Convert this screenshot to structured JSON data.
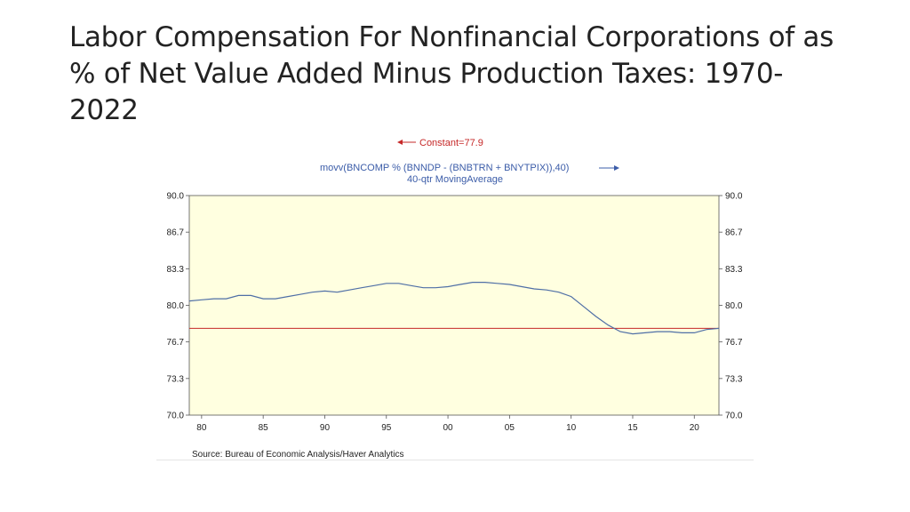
{
  "slide": {
    "title": "Labor Compensation For Nonfinancial Corporations of as % of Net Value Added Minus Production Taxes: 1970-2022"
  },
  "chart_data": {
    "type": "line",
    "legend": {
      "constant_label": "Constant=77.9",
      "series_label": "movv(BNCOMP % (BNNDP - (BNBTRN + BNYTPIX)),40)",
      "series_sublabel": "40-qtr MovingAverage"
    },
    "yticks_left": [
      "90.0",
      "86.7",
      "83.3",
      "80.0",
      "76.7",
      "73.3",
      "70.0"
    ],
    "yticks_right": [
      "90.0",
      "86.7",
      "83.3",
      "80.0",
      "76.7",
      "73.3",
      "70.0"
    ],
    "xticks": [
      "80",
      "85",
      "90",
      "95",
      "00",
      "05",
      "10",
      "15",
      "20"
    ],
    "xtick_years": [
      1980,
      1985,
      1990,
      1995,
      2000,
      2005,
      2010,
      2015,
      2020
    ],
    "ylim": [
      70.0,
      90.0
    ],
    "xlim": [
      1979.0,
      2022.0
    ],
    "constant_value": 77.9,
    "series": [
      {
        "name": "40-qtr MovingAverage",
        "x": [
          1979.0,
          1980.0,
          1981.0,
          1982.0,
          1983.0,
          1984.0,
          1985.0,
          1986.0,
          1987.0,
          1988.0,
          1989.0,
          1990.0,
          1991.0,
          1992.0,
          1993.0,
          1994.0,
          1995.0,
          1996.0,
          1997.0,
          1998.0,
          1999.0,
          2000.0,
          2001.0,
          2002.0,
          2003.0,
          2004.0,
          2005.0,
          2006.0,
          2007.0,
          2008.0,
          2009.0,
          2010.0,
          2011.0,
          2012.0,
          2013.0,
          2014.0,
          2015.0,
          2016.0,
          2017.0,
          2018.0,
          2019.0,
          2020.0,
          2021.0,
          2022.0
        ],
        "values": [
          80.4,
          80.5,
          80.6,
          80.6,
          80.9,
          80.9,
          80.6,
          80.6,
          80.8,
          81.0,
          81.2,
          81.3,
          81.2,
          81.4,
          81.6,
          81.8,
          82.0,
          82.0,
          81.8,
          81.6,
          81.6,
          81.7,
          81.9,
          82.1,
          82.1,
          82.0,
          81.9,
          81.7,
          81.5,
          81.4,
          81.2,
          80.8,
          79.9,
          79.0,
          78.2,
          77.6,
          77.4,
          77.5,
          77.6,
          77.6,
          77.5,
          77.5,
          77.8,
          77.9
        ]
      }
    ],
    "source": "Source:  Bureau of Economic Analysis/Haver Analytics",
    "colors": {
      "plot_bg": "#ffffe0",
      "series": "#4f6fa6",
      "constant": "#c62828",
      "legend_text_blue": "#3b5ca8",
      "legend_text_red": "#c62828"
    }
  }
}
